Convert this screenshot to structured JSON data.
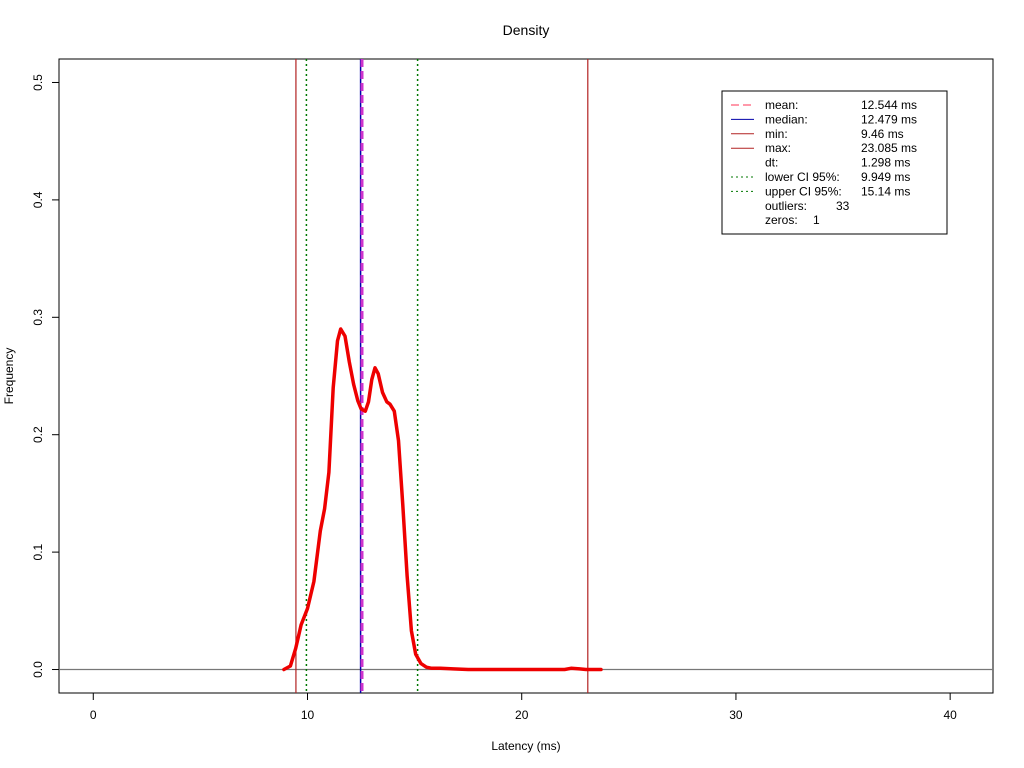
{
  "chart_data": {
    "type": "line",
    "title": "Density",
    "xlabel": "Latency (ms)",
    "ylabel": "Frequency",
    "xlim": [
      -1.6,
      42.0
    ],
    "ylim": [
      -0.02,
      0.52
    ],
    "x_ticks": [
      0,
      10,
      20,
      30,
      40
    ],
    "y_ticks": [
      0.0,
      0.1,
      0.2,
      0.3,
      0.4,
      0.5
    ],
    "x_tick_labels": [
      "0",
      "10",
      "20",
      "30",
      "40"
    ],
    "y_tick_labels": [
      "0.0",
      "0.1",
      "0.2",
      "0.3",
      "0.4",
      "0.5"
    ],
    "grid": false,
    "legend_position": "top-right",
    "series": [
      {
        "color": "#ee0000",
        "x": [
          8.9,
          9.2,
          9.45,
          9.7,
          10.0,
          10.3,
          10.6,
          10.8,
          11.0,
          11.2,
          11.4,
          11.55,
          11.75,
          11.95,
          12.15,
          12.35,
          12.5,
          12.7,
          12.85,
          13.0,
          13.15,
          13.3,
          13.5,
          13.7,
          13.85,
          14.05,
          14.25,
          14.45,
          14.65,
          14.85,
          15.05,
          15.3,
          15.55,
          15.8,
          16.2,
          16.8,
          17.5,
          18.5,
          19.5,
          20.5,
          21.5,
          22.0,
          22.3,
          22.7,
          23.0,
          23.4,
          23.7
        ],
        "y": [
          0.0,
          0.003,
          0.018,
          0.038,
          0.052,
          0.075,
          0.118,
          0.137,
          0.168,
          0.24,
          0.28,
          0.29,
          0.284,
          0.262,
          0.243,
          0.229,
          0.222,
          0.22,
          0.228,
          0.247,
          0.257,
          0.252,
          0.236,
          0.228,
          0.226,
          0.22,
          0.195,
          0.14,
          0.08,
          0.033,
          0.013,
          0.005,
          0.002,
          0.001,
          0.001,
          0.0005,
          0.0,
          0.0,
          0.0,
          0.0,
          0.0,
          0.0,
          0.001,
          0.0005,
          0.0,
          0.0,
          0.0
        ]
      }
    ],
    "reference_lines": {
      "mean": {
        "x": 12.544,
        "color": "#ff3355",
        "style": "dashed"
      },
      "median": {
        "x": 12.479,
        "color": "#0000aa",
        "style": "solid"
      },
      "min": {
        "x": 9.46,
        "color": "#b22222",
        "style": "solid"
      },
      "max": {
        "x": 23.085,
        "color": "#b22222",
        "style": "solid"
      },
      "lower_ci": {
        "x": 9.949,
        "color": "#007700",
        "style": "dotted"
      },
      "upper_ci": {
        "x": 15.14,
        "color": "#007700",
        "style": "dotted"
      },
      "mean_overlay_color": "#cc33cc"
    },
    "baseline": {
      "y": 0.0,
      "color": "#777777"
    },
    "legend": [
      {
        "label": "mean:",
        "value": "12.544 ms",
        "line_color": "#ff3355",
        "line_style": "dashed"
      },
      {
        "label": "median:",
        "value": "12.479 ms",
        "line_color": "#0000aa",
        "line_style": "solid"
      },
      {
        "label": "min:",
        "value": "9.46 ms",
        "line_color": "#b22222",
        "line_style": "solid"
      },
      {
        "label": "max:",
        "value": "23.085 ms",
        "line_color": "#b22222",
        "line_style": "solid"
      },
      {
        "label": "dt:",
        "value": "1.298 ms",
        "line_color": "",
        "line_style": ""
      },
      {
        "label": "lower CI 95%:",
        "value": "9.949 ms",
        "line_color": "#007700",
        "line_style": "dotted"
      },
      {
        "label": "upper CI 95%:",
        "value": "15.14 ms",
        "line_color": "#007700",
        "line_style": "dotted"
      },
      {
        "label": "outliers:",
        "value": "33",
        "line_color": "",
        "line_style": ""
      },
      {
        "label": "zeros:",
        "value": "1",
        "line_color": "",
        "line_style": ""
      }
    ]
  }
}
